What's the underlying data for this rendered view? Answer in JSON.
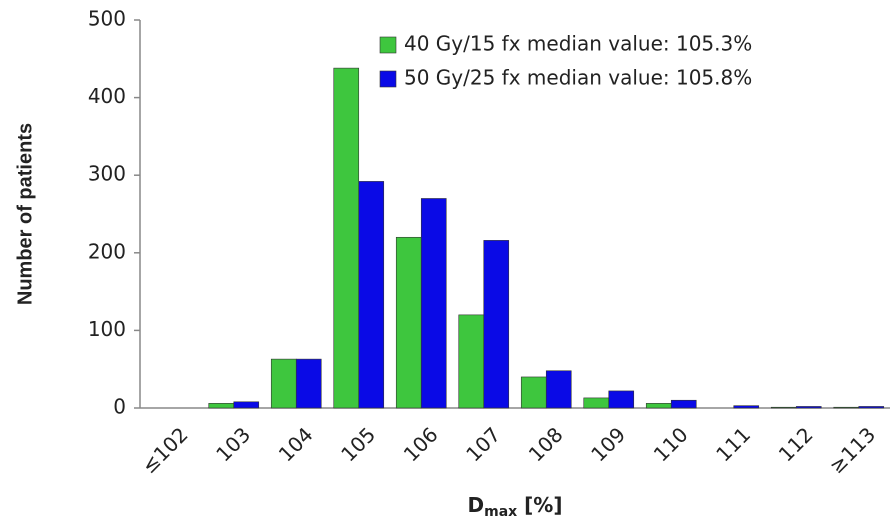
{
  "chart_data": {
    "type": "bar",
    "y_label": "Number of patients",
    "x_label": {
      "main": "D",
      "sub": "max",
      "rest": " [%]"
    },
    "categories": [
      "≤102",
      "103",
      "104",
      "105",
      "106",
      "107",
      "108",
      "109",
      "110",
      "111",
      "112",
      "≥113"
    ],
    "series": [
      {
        "name": "40 Gy/15 fx median value: 105.3%",
        "color": "#3ec63e",
        "values": [
          0,
          6,
          63,
          438,
          220,
          120,
          40,
          13,
          6,
          0,
          1,
          1
        ]
      },
      {
        "name": "50 Gy/25 fx median value: 105.8%",
        "color": "#0a0ae6",
        "values": [
          0,
          8,
          63,
          292,
          270,
          216,
          48,
          22,
          10,
          3,
          2,
          2
        ]
      }
    ],
    "ylim": [
      0,
      500
    ],
    "yticks": [
      0,
      100,
      200,
      300,
      400,
      500
    ],
    "grid": false,
    "legend": "upper right"
  }
}
